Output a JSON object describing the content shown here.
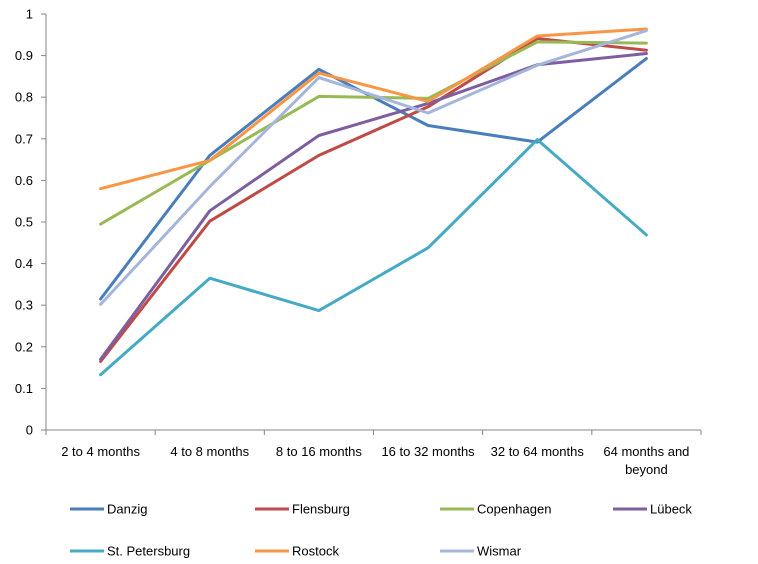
{
  "chart_data": {
    "type": "line",
    "categories": [
      "2 to 4 months",
      "4 to 8 months",
      "8 to 16 months",
      "16 to 32 months",
      "32 to 64 months",
      "64 months and beyond"
    ],
    "ylim": [
      0,
      1
    ],
    "yticks": [
      0,
      0.1,
      0.2,
      0.3,
      0.4,
      0.5,
      0.6,
      0.7,
      0.8,
      0.9,
      1
    ],
    "ytick_labels": [
      "0",
      "0.1",
      "0.2",
      "0.3",
      "0.4",
      "0.5",
      "0.6",
      "0.7",
      "0.8",
      "0.9",
      "1"
    ],
    "grid": false,
    "legend_position": "bottom",
    "series": [
      {
        "name": "Danzig",
        "color": "#4A7EBB",
        "values": [
          0.315,
          0.66,
          0.867,
          0.732,
          0.692,
          0.893
        ]
      },
      {
        "name": "Flensburg",
        "color": "#BE4B48",
        "values": [
          0.165,
          0.502,
          0.66,
          0.777,
          0.941,
          0.913
        ]
      },
      {
        "name": "Copenhagen",
        "color": "#98B954",
        "values": [
          0.495,
          0.648,
          0.802,
          0.797,
          0.933,
          0.93
        ]
      },
      {
        "name": "Lübeck",
        "color": "#7D5FA0",
        "values": [
          0.17,
          0.527,
          0.708,
          0.785,
          0.878,
          0.905
        ]
      },
      {
        "name": "St. Petersburg",
        "color": "#46AAC5",
        "values": [
          0.133,
          0.365,
          0.287,
          0.438,
          0.698,
          0.469
        ]
      },
      {
        "name": "Rostock",
        "color": "#F79646",
        "values": [
          0.58,
          0.648,
          0.858,
          0.79,
          0.947,
          0.964
        ]
      },
      {
        "name": "Wismar",
        "color": "#A5B6DA",
        "values": [
          0.302,
          0.585,
          0.847,
          0.762,
          0.877,
          0.96
        ]
      }
    ]
  }
}
